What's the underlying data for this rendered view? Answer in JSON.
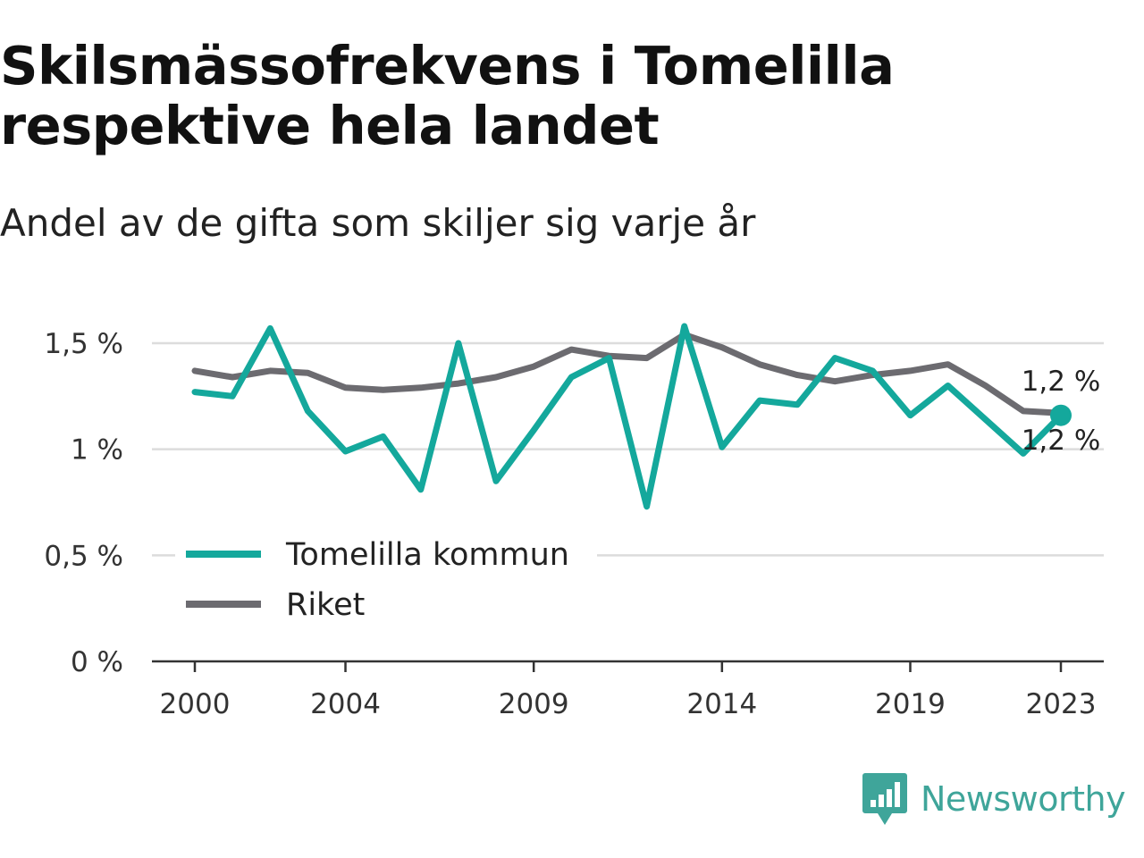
{
  "title": "Skilsmässofrekvens i Tomelilla respektive hela landet",
  "subtitle": "Andel av de gifta som skiljer sig varje år",
  "brand": {
    "name": "Newsworthy",
    "color": "#3fa59a",
    "icon": "bar-chart-speech-bubble-icon"
  },
  "chart_data": {
    "type": "line",
    "x": [
      2000,
      2001,
      2002,
      2003,
      2004,
      2005,
      2006,
      2007,
      2008,
      2009,
      2010,
      2011,
      2012,
      2013,
      2014,
      2015,
      2016,
      2017,
      2018,
      2019,
      2020,
      2021,
      2022,
      2023
    ],
    "x_ticks": [
      2000,
      2004,
      2009,
      2014,
      2019,
      2023
    ],
    "x_tick_labels": [
      "2000",
      "2004",
      "2009",
      "2014",
      "2019",
      "2023"
    ],
    "xlim": [
      2000,
      2023
    ],
    "ylim": [
      0,
      1.5
    ],
    "y_ticks": [
      0,
      0.5,
      1,
      1.5
    ],
    "y_tick_labels": [
      "0 %",
      "0,5 %",
      "1 %",
      "1,5 %"
    ],
    "grid": true,
    "legend_position": "bottom-left",
    "series": [
      {
        "name": "Tomelilla kommun",
        "color": "#14a89c",
        "values": [
          1.27,
          1.25,
          1.57,
          1.18,
          0.99,
          1.06,
          0.81,
          1.5,
          0.85,
          1.09,
          1.34,
          1.43,
          0.73,
          1.58,
          1.01,
          1.23,
          1.21,
          1.43,
          1.37,
          1.16,
          1.3,
          1.14,
          0.98,
          1.16
        ],
        "end_label": "1,2 %"
      },
      {
        "name": "Riket",
        "color": "#6c6b70",
        "values": [
          1.37,
          1.34,
          1.37,
          1.36,
          1.29,
          1.28,
          1.29,
          1.31,
          1.34,
          1.39,
          1.47,
          1.44,
          1.43,
          1.54,
          1.48,
          1.4,
          1.35,
          1.32,
          1.35,
          1.37,
          1.4,
          1.3,
          1.18,
          1.17
        ],
        "end_label": "1,2 %"
      }
    ]
  }
}
